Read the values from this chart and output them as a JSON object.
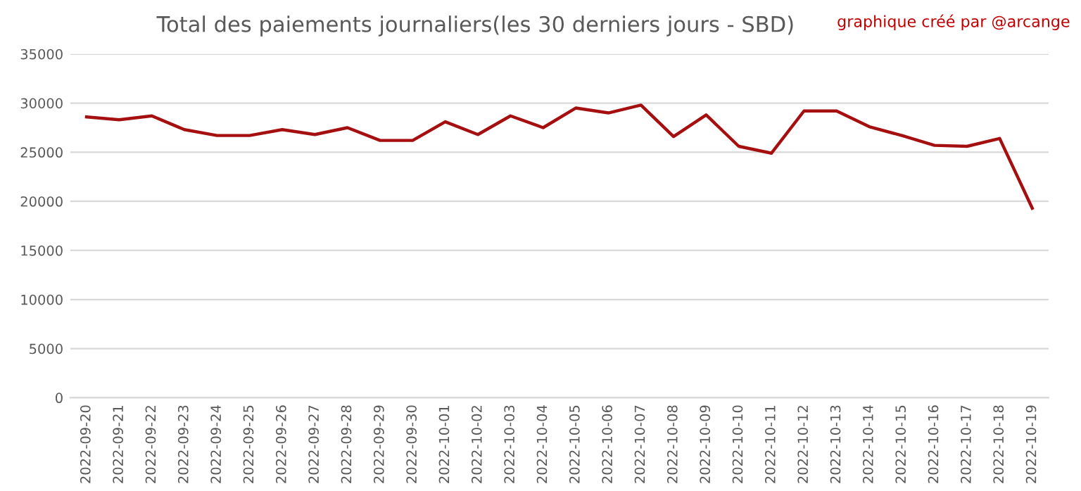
{
  "chart_data": {
    "type": "line",
    "title": "Total des paiements journaliers(les 30 derniers jours - SBD)",
    "annotations": [
      "graphique créé par @arcange"
    ],
    "categories": [
      "2022-09-20",
      "2022-09-21",
      "2022-09-22",
      "2022-09-23",
      "2022-09-24",
      "2022-09-25",
      "2022-09-26",
      "2022-09-27",
      "2022-09-28",
      "2022-09-29",
      "2022-09-30",
      "2022-10-01",
      "2022-10-02",
      "2022-10-03",
      "2022-10-04",
      "2022-10-05",
      "2022-10-06",
      "2022-10-07",
      "2022-10-08",
      "2022-10-09",
      "2022-10-10",
      "2022-10-11",
      "2022-10-12",
      "2022-10-13",
      "2022-10-14",
      "2022-10-15",
      "2022-10-16",
      "2022-10-17",
      "2022-10-18",
      "2022-10-19"
    ],
    "series": [
      {
        "color": "#a50f0f",
        "values": [
          28600,
          28300,
          28700,
          27300,
          26700,
          26700,
          27300,
          26800,
          27500,
          26200,
          26200,
          28100,
          26800,
          28700,
          27500,
          29500,
          29000,
          29800,
          26600,
          28800,
          25600,
          24900,
          29200,
          29200,
          27600,
          26700,
          25700,
          25600,
          26400,
          19300
        ]
      }
    ],
    "ylim": [
      0,
      35000
    ],
    "yticks": [
      0,
      5000,
      10000,
      15000,
      20000,
      25000,
      30000,
      35000
    ],
    "grid": "y",
    "marker": "none",
    "line_style": "solid"
  }
}
